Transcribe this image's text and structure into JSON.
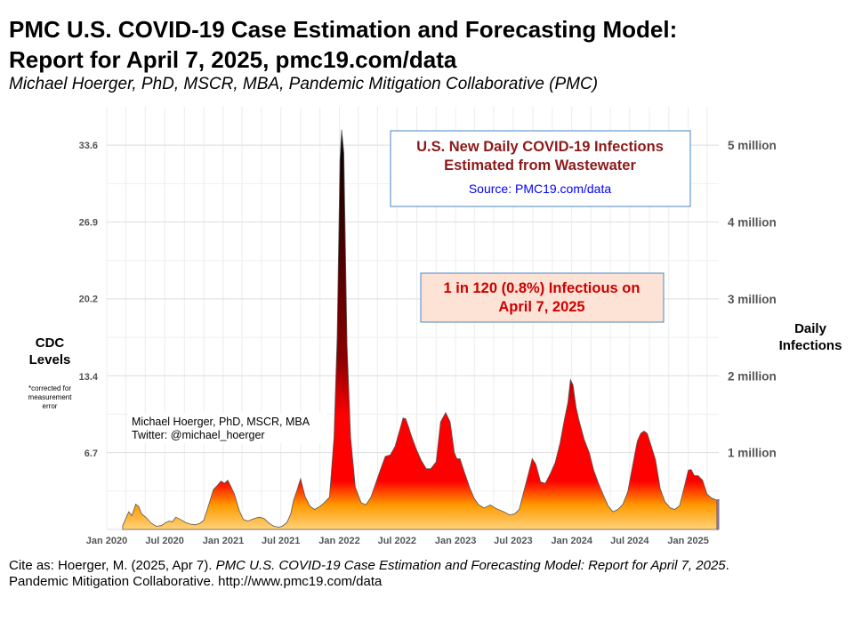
{
  "header": {
    "title_line1": "PMC U.S. COVID-19 Case Estimation and Forecasting Model:",
    "title_line2": "Report for April 7, 2025, pmc19.com/data",
    "subtitle": "Michael Hoerger, PhD, MSCR, MBA, Pandemic Mitigation Collaborative (PMC)"
  },
  "axes": {
    "left_label_line1": "CDC",
    "left_label_line2": "Levels",
    "left_note_line1": "*corrected for",
    "left_note_line2": "measurement",
    "left_note_line3": "error",
    "right_label_line1": "Daily",
    "right_label_line2": "Infections"
  },
  "chart_data": {
    "type": "area",
    "title": "U.S. New Daily COVID-19 Infections Estimated from Wastewater",
    "title_line1": "U.S. New Daily COVID-19 Infections",
    "title_line2": "Estimated from Wastewater",
    "source_text": "Source: PMC19.com/data",
    "callout_line1": "1 in 120 (0.8%) Infectious on",
    "callout_line2": "April 7, 2025",
    "author_line1": "Michael Hoerger, PhD, MSCR, MBA",
    "author_line2": "Twitter: @michael_hoerger",
    "x_range": [
      "2020-01-01",
      "2025-04-07"
    ],
    "x_ticks": [
      {
        "date": "2020-01-01",
        "label": "Jan 2020"
      },
      {
        "date": "2020-07-01",
        "label": "Jul 2020"
      },
      {
        "date": "2021-01-01",
        "label": "Jan 2021"
      },
      {
        "date": "2021-07-01",
        "label": "Jul 2021"
      },
      {
        "date": "2022-01-01",
        "label": "Jan 2022"
      },
      {
        "date": "2022-07-01",
        "label": "Jul 2022"
      },
      {
        "date": "2023-01-01",
        "label": "Jan 2023"
      },
      {
        "date": "2023-07-01",
        "label": "Jul 2023"
      },
      {
        "date": "2024-01-01",
        "label": "Jan 2024"
      },
      {
        "date": "2024-07-01",
        "label": "Jul 2024"
      },
      {
        "date": "2025-01-01",
        "label": "Jan 2025"
      }
    ],
    "left_ticks": [
      {
        "value": 6.7,
        "label": "6.7"
      },
      {
        "value": 13.4,
        "label": "13.4"
      },
      {
        "value": 20.2,
        "label": "20.2"
      },
      {
        "value": 26.9,
        "label": "26.9"
      },
      {
        "value": 33.6,
        "label": "33.6"
      }
    ],
    "right_ticks": [
      {
        "value": 1000000,
        "label": "1 million"
      },
      {
        "value": 2000000,
        "label": "2 million"
      },
      {
        "value": 3000000,
        "label": "3 million"
      },
      {
        "value": 4000000,
        "label": "4 million"
      },
      {
        "value": 5000000,
        "label": "5 million"
      }
    ],
    "ylim": [
      0,
      5500000
    ],
    "grid": true,
    "colors": {
      "peak": "#000000",
      "high": "#8b0000",
      "mid": "#ff0000",
      "low": "#ff9a00",
      "base": "#ffd27a",
      "forecast": "#9966cc",
      "title_text": "#8b1a1a",
      "source_text": "#0000ff",
      "callout_text": "#cc0000",
      "callout_fill": "#fde3d6",
      "box_border": "#4a86c5"
    },
    "series": [
      {
        "x": [
          "2020-02-20",
          "2020-03-10",
          "2020-03-20",
          "2020-04-01",
          "2020-04-10",
          "2020-04-20",
          "2020-05-05",
          "2020-05-20",
          "2020-06-05",
          "2020-06-20",
          "2020-07-05",
          "2020-07-15",
          "2020-07-25",
          "2020-08-05",
          "2020-08-20",
          "2020-09-05",
          "2020-09-20",
          "2020-10-05",
          "2020-10-20",
          "2020-11-01",
          "2020-11-15",
          "2020-12-01",
          "2020-12-15",
          "2020-12-25",
          "2021-01-05",
          "2021-01-15",
          "2021-01-25",
          "2021-02-05",
          "2021-02-20",
          "2021-03-05",
          "2021-03-20",
          "2021-04-01",
          "2021-04-15",
          "2021-04-25",
          "2021-05-10",
          "2021-05-25",
          "2021-06-10",
          "2021-06-25",
          "2021-07-05",
          "2021-07-20",
          "2021-08-01",
          "2021-08-10",
          "2021-08-20",
          "2021-09-01",
          "2021-09-15",
          "2021-10-01",
          "2021-10-15",
          "2021-11-01",
          "2021-11-15",
          "2021-12-01",
          "2021-12-15",
          "2021-12-25",
          "2022-01-03",
          "2022-01-08",
          "2022-01-15",
          "2022-01-25",
          "2022-02-05",
          "2022-02-20",
          "2022-03-10",
          "2022-03-25",
          "2022-04-10",
          "2022-04-25",
          "2022-05-10",
          "2022-05-25",
          "2022-06-10",
          "2022-06-25",
          "2022-07-10",
          "2022-07-20",
          "2022-07-28",
          "2022-08-05",
          "2022-08-15",
          "2022-08-30",
          "2022-09-15",
          "2022-10-01",
          "2022-10-15",
          "2022-11-01",
          "2022-11-15",
          "2022-12-01",
          "2022-12-15",
          "2022-12-28",
          "2023-01-05",
          "2023-01-15",
          "2023-01-30",
          "2023-02-15",
          "2023-03-01",
          "2023-03-15",
          "2023-04-01",
          "2023-04-20",
          "2023-05-10",
          "2023-06-01",
          "2023-06-20",
          "2023-07-05",
          "2023-07-20",
          "2023-08-05",
          "2023-08-20",
          "2023-08-30",
          "2023-09-10",
          "2023-09-25",
          "2023-10-10",
          "2023-10-25",
          "2023-11-10",
          "2023-11-25",
          "2023-12-10",
          "2023-12-20",
          "2023-12-28",
          "2024-01-05",
          "2024-01-15",
          "2024-01-25",
          "2024-02-10",
          "2024-02-25",
          "2024-03-10",
          "2024-03-25",
          "2024-04-10",
          "2024-04-25",
          "2024-05-10",
          "2024-05-25",
          "2024-06-10",
          "2024-06-25",
          "2024-07-10",
          "2024-07-25",
          "2024-08-05",
          "2024-08-15",
          "2024-08-25",
          "2024-09-05",
          "2024-09-20",
          "2024-10-05",
          "2024-10-20",
          "2024-11-05",
          "2024-11-20",
          "2024-12-05",
          "2024-12-20",
          "2025-01-01",
          "2025-01-10",
          "2025-01-20",
          "2025-02-01",
          "2025-02-15",
          "2025-03-01",
          "2025-03-15",
          "2025-04-01",
          "2025-04-07"
        ],
        "values": [
          50000,
          230000,
          180000,
          330000,
          300000,
          200000,
          150000,
          80000,
          40000,
          50000,
          90000,
          110000,
          100000,
          160000,
          130000,
          90000,
          70000,
          60000,
          80000,
          120000,
          300000,
          520000,
          580000,
          630000,
          600000,
          640000,
          560000,
          460000,
          250000,
          130000,
          110000,
          130000,
          150000,
          160000,
          140000,
          80000,
          40000,
          30000,
          40000,
          90000,
          200000,
          380000,
          500000,
          660000,
          430000,
          300000,
          260000,
          300000,
          350000,
          420000,
          1200000,
          2500000,
          4800000,
          5200000,
          4900000,
          2400000,
          1200000,
          550000,
          350000,
          320000,
          420000,
          600000,
          780000,
          950000,
          970000,
          1080000,
          1300000,
          1450000,
          1440000,
          1350000,
          1220000,
          1050000,
          900000,
          790000,
          790000,
          880000,
          1400000,
          1520000,
          1400000,
          1000000,
          920000,
          920000,
          730000,
          540000,
          400000,
          320000,
          280000,
          320000,
          270000,
          230000,
          190000,
          200000,
          260000,
          520000,
          760000,
          920000,
          850000,
          620000,
          600000,
          720000,
          870000,
          1120000,
          1450000,
          1650000,
          1950000,
          1880000,
          1580000,
          1400000,
          1160000,
          1000000,
          770000,
          600000,
          440000,
          300000,
          230000,
          260000,
          330000,
          490000,
          820000,
          1150000,
          1250000,
          1280000,
          1250000,
          1110000,
          910000,
          530000,
          360000,
          280000,
          260000,
          310000,
          560000,
          770000,
          780000,
          700000,
          700000,
          640000,
          460000,
          410000,
          380000,
          390000
        ],
        "forecast_from": "2025-03-25"
      }
    ]
  },
  "citation": {
    "lead": "Cite as: Hoerger, M. (2025, Apr 7). ",
    "title": "PMC U.S. COVID-19 Case Estimation and Forecasting Model: Report for April 7, 2025",
    "period": ".",
    "line2": "Pandemic Mitigation Collaborative. http://www.pmc19.com/data"
  }
}
